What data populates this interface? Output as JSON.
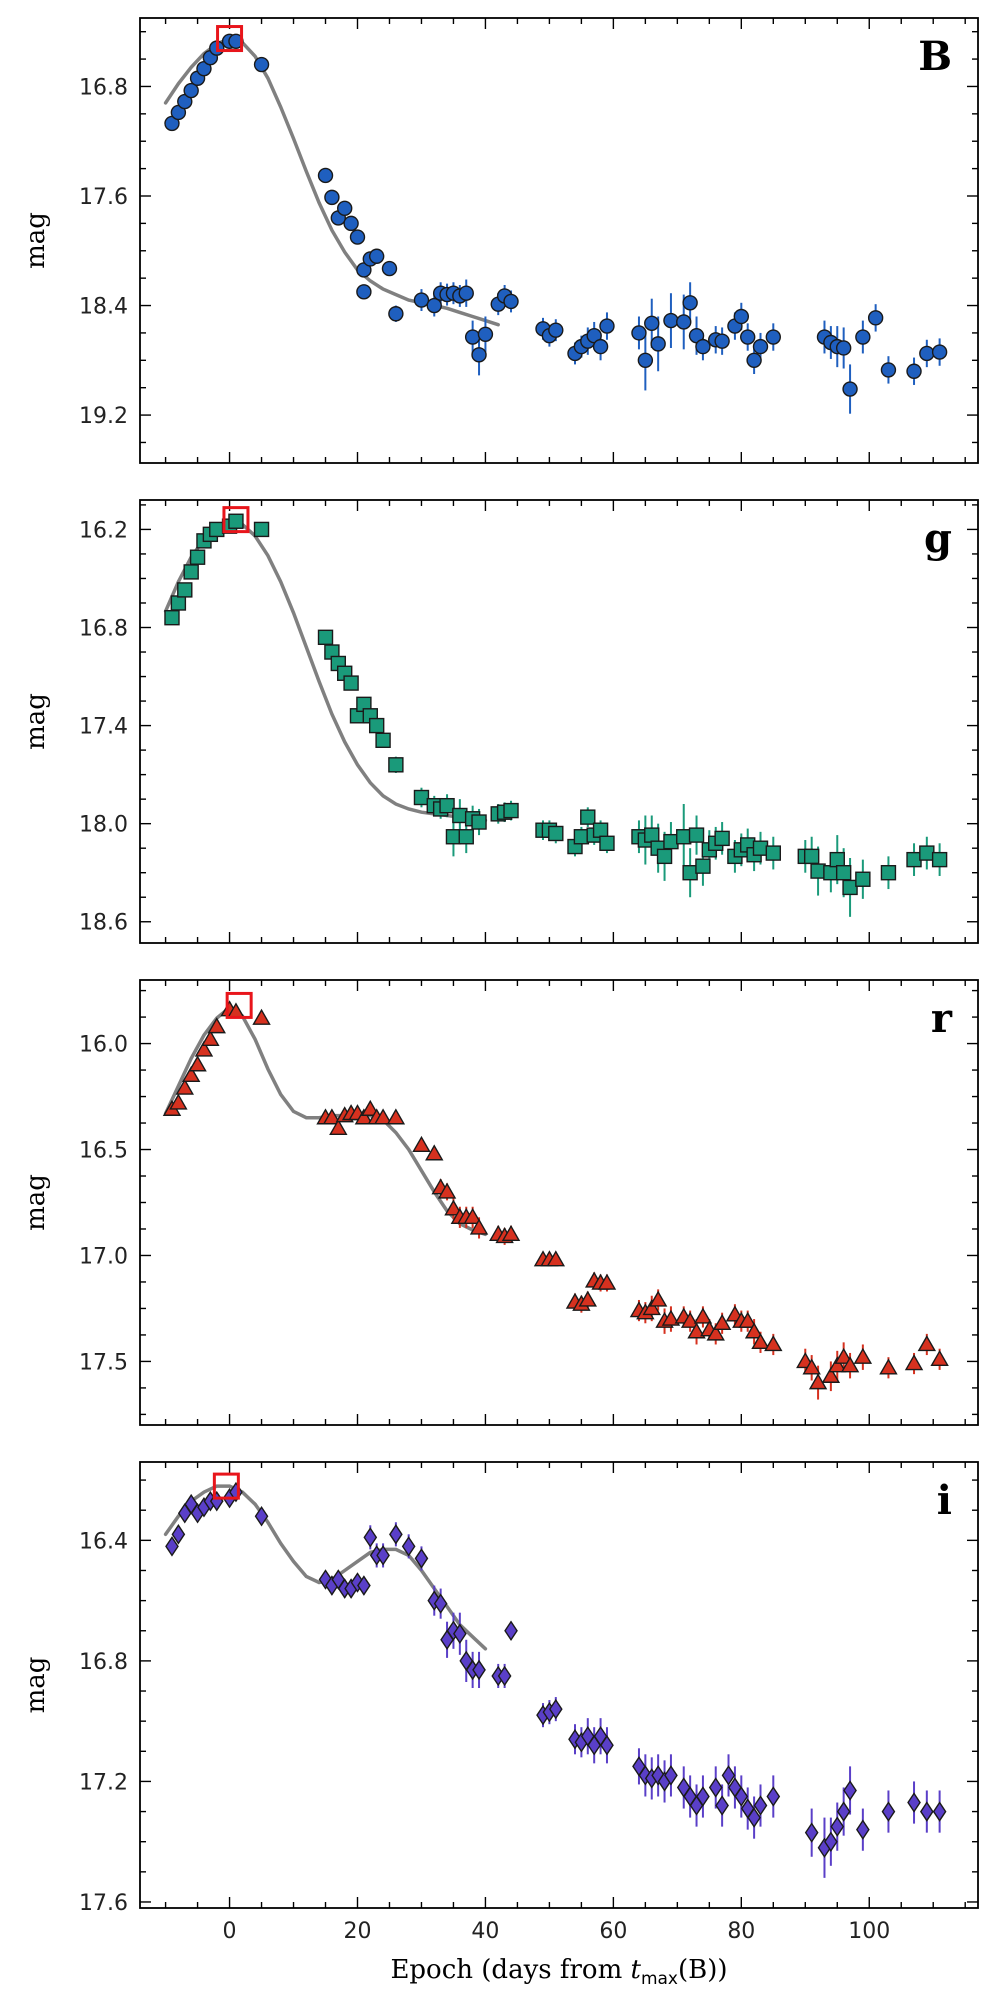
{
  "figure": {
    "xlabel": "Epoch (days from ",
    "xlabel_math": "t",
    "xlabel_sub": "max",
    "xlabel_tail": "(B))",
    "x_ticks": [
      "0",
      "20",
      "40",
      "60",
      "80",
      "100"
    ]
  },
  "chart_data": [
    {
      "type": "scatter",
      "band": "B",
      "ylabel": "mag",
      "xlim": [
        -14,
        117
      ],
      "ylim": [
        19.55,
        16.3
      ],
      "y_ticks": [
        "16.8",
        "17.6",
        "18.4",
        "19.2"
      ],
      "y_tick_values": [
        16.8,
        17.6,
        18.4,
        19.2
      ],
      "marker": "circle",
      "color": "#1f5fbf",
      "model_curve": {
        "x": [
          -10,
          -8,
          -6,
          -4,
          -2,
          0,
          2,
          4,
          6,
          8,
          10,
          12,
          14,
          16,
          18,
          20,
          22,
          24,
          26,
          28,
          30,
          32,
          34,
          36,
          38,
          40,
          42
        ],
        "y": [
          16.92,
          16.78,
          16.66,
          16.56,
          16.49,
          16.45,
          16.48,
          16.58,
          16.74,
          16.95,
          17.18,
          17.42,
          17.65,
          17.85,
          18.01,
          18.14,
          18.22,
          18.28,
          18.32,
          18.36,
          18.38,
          18.4,
          18.42,
          18.45,
          18.48,
          18.51,
          18.54
        ]
      },
      "peak_marker": {
        "x": 0,
        "y": 16.45
      },
      "x": [
        -9,
        -8,
        -7,
        -6,
        -5,
        -4,
        -3,
        -2,
        0,
        1,
        5,
        15,
        16,
        17,
        18,
        19,
        20,
        21,
        21,
        22,
        23,
        25,
        26,
        30,
        32,
        33,
        34,
        35,
        36,
        37,
        38,
        39,
        40,
        42,
        43,
        44,
        49,
        50,
        51,
        54,
        55,
        56,
        57,
        58,
        59,
        64,
        65,
        66,
        67,
        69,
        71,
        72,
        73,
        74,
        76,
        77,
        79,
        80,
        81,
        82,
        83,
        85,
        93,
        94,
        95,
        96,
        97,
        99,
        101,
        103,
        107,
        109,
        111
      ],
      "y": [
        17.07,
        16.99,
        16.91,
        16.83,
        16.74,
        16.67,
        16.59,
        16.52,
        16.47,
        16.47,
        16.64,
        17.45,
        17.61,
        17.76,
        17.69,
        17.8,
        17.9,
        18.14,
        18.3,
        18.06,
        18.04,
        18.13,
        18.46,
        18.36,
        18.4,
        18.31,
        18.32,
        18.31,
        18.33,
        18.31,
        18.63,
        18.76,
        18.61,
        18.39,
        18.33,
        18.37,
        18.57,
        18.62,
        18.58,
        18.75,
        18.7,
        18.66,
        18.62,
        18.7,
        18.55,
        18.6,
        18.8,
        18.53,
        18.68,
        18.51,
        18.52,
        18.38,
        18.62,
        18.7,
        18.65,
        18.66,
        18.55,
        18.48,
        18.63,
        18.8,
        18.7,
        18.63,
        18.63,
        18.67,
        18.7,
        18.71,
        19.01,
        18.63,
        18.49,
        18.87,
        18.88,
        18.75,
        18.74
      ],
      "yerr": [
        0.02,
        0.02,
        0.02,
        0.02,
        0.02,
        0.02,
        0.02,
        0.02,
        0.02,
        0.02,
        0.02,
        0.03,
        0.03,
        0.03,
        0.03,
        0.04,
        0.04,
        0.05,
        0.05,
        0.04,
        0.04,
        0.05,
        0.06,
        0.08,
        0.08,
        0.08,
        0.08,
        0.08,
        0.08,
        0.1,
        0.12,
        0.15,
        0.13,
        0.08,
        0.08,
        0.08,
        0.08,
        0.08,
        0.08,
        0.08,
        0.08,
        0.1,
        0.1,
        0.1,
        0.1,
        0.12,
        0.22,
        0.18,
        0.2,
        0.2,
        0.2,
        0.15,
        0.14,
        0.1,
        0.1,
        0.1,
        0.1,
        0.1,
        0.1,
        0.1,
        0.1,
        0.1,
        0.12,
        0.12,
        0.15,
        0.15,
        0.18,
        0.12,
        0.1,
        0.1,
        0.1,
        0.1,
        0.1
      ]
    },
    {
      "type": "scatter",
      "band": "g",
      "ylabel": "mag",
      "xlim": [
        -14,
        117
      ],
      "ylim": [
        18.73,
        16.02
      ],
      "y_ticks": [
        "16.2",
        "16.8",
        "17.4",
        "18.0",
        "18.6"
      ],
      "y_tick_values": [
        16.2,
        16.8,
        17.4,
        18.0,
        18.6
      ],
      "marker": "square",
      "color": "#1a9a7a",
      "model_curve": {
        "x": [
          -10,
          -8,
          -6,
          -4,
          -2,
          0,
          2,
          4,
          6,
          8,
          10,
          12,
          14,
          16,
          18,
          20,
          22,
          24,
          26,
          28,
          30,
          32,
          34,
          36,
          38,
          40
        ],
        "y": [
          16.7,
          16.52,
          16.37,
          16.26,
          16.19,
          16.15,
          16.17,
          16.24,
          16.36,
          16.52,
          16.71,
          16.92,
          17.13,
          17.33,
          17.5,
          17.64,
          17.75,
          17.83,
          17.88,
          17.91,
          17.93,
          17.94,
          17.95,
          17.96,
          17.97,
          17.98
        ]
      },
      "peak_marker": {
        "x": 1,
        "y": 16.14
      },
      "x": [
        -9,
        -8,
        -7,
        -6,
        -5,
        -4,
        -3,
        -2,
        0,
        1,
        5,
        15,
        16,
        17,
        18,
        19,
        20,
        21,
        22,
        23,
        24,
        26,
        30,
        32,
        33,
        34,
        35,
        36,
        37,
        38,
        39,
        42,
        43,
        44,
        49,
        50,
        51,
        54,
        55,
        56,
        57,
        58,
        59,
        64,
        65,
        66,
        67,
        68,
        69,
        71,
        72,
        73,
        74,
        75,
        76,
        77,
        79,
        80,
        81,
        82,
        83,
        85,
        90,
        91,
        92,
        94,
        95,
        96,
        97,
        99,
        103,
        107,
        109,
        111
      ],
      "y": [
        16.74,
        16.65,
        16.57,
        16.46,
        16.37,
        16.27,
        16.23,
        16.2,
        16.18,
        16.15,
        16.2,
        16.86,
        16.95,
        17.02,
        17.08,
        17.14,
        17.34,
        17.27,
        17.34,
        17.4,
        17.49,
        17.64,
        17.84,
        17.89,
        17.91,
        17.89,
        18.08,
        17.95,
        18.08,
        17.97,
        17.99,
        17.94,
        17.93,
        17.92,
        18.04,
        18.04,
        18.06,
        18.14,
        18.08,
        17.96,
        18.07,
        18.04,
        18.12,
        18.08,
        18.1,
        18.07,
        18.15,
        18.2,
        18.11,
        18.08,
        18.3,
        18.07,
        18.26,
        18.16,
        18.12,
        18.09,
        18.2,
        18.16,
        18.13,
        18.19,
        18.15,
        18.18,
        18.2,
        18.2,
        18.29,
        18.3,
        18.22,
        18.3,
        18.39,
        18.34,
        18.3,
        18.22,
        18.18,
        18.22
      ],
      "yerr": [
        0.02,
        0.02,
        0.02,
        0.02,
        0.02,
        0.02,
        0.02,
        0.02,
        0.02,
        0.02,
        0.02,
        0.03,
        0.03,
        0.03,
        0.03,
        0.03,
        0.04,
        0.04,
        0.04,
        0.04,
        0.04,
        0.05,
        0.06,
        0.06,
        0.06,
        0.07,
        0.12,
        0.1,
        0.1,
        0.08,
        0.08,
        0.06,
        0.06,
        0.06,
        0.06,
        0.06,
        0.06,
        0.06,
        0.06,
        0.06,
        0.06,
        0.06,
        0.06,
        0.1,
        0.15,
        0.12,
        0.15,
        0.15,
        0.12,
        0.2,
        0.15,
        0.12,
        0.12,
        0.12,
        0.1,
        0.1,
        0.1,
        0.1,
        0.1,
        0.1,
        0.1,
        0.1,
        0.1,
        0.12,
        0.15,
        0.12,
        0.15,
        0.15,
        0.18,
        0.12,
        0.1,
        0.1,
        0.1,
        0.1
      ]
    },
    {
      "type": "scatter",
      "band": "r",
      "ylabel": "mag",
      "xlim": [
        -14,
        117
      ],
      "ylim": [
        17.8,
        15.7
      ],
      "y_ticks": [
        "16.0",
        "16.5",
        "17.0",
        "17.5"
      ],
      "y_tick_values": [
        16.0,
        16.5,
        17.0,
        17.5
      ],
      "marker": "triangle",
      "color": "#d6311f",
      "model_curve": {
        "x": [
          -10,
          -8,
          -6,
          -4,
          -2,
          0,
          2,
          4,
          6,
          8,
          10,
          12,
          14,
          16,
          18,
          20,
          22,
          24,
          26,
          28,
          30,
          32,
          34,
          36,
          38,
          40
        ],
        "y": [
          16.33,
          16.2,
          16.07,
          15.96,
          15.88,
          15.83,
          15.87,
          15.98,
          16.12,
          16.24,
          16.32,
          16.35,
          16.35,
          16.34,
          16.34,
          16.34,
          16.34,
          16.36,
          16.42,
          16.5,
          16.6,
          16.7,
          16.79,
          16.85,
          16.88,
          16.9
        ]
      },
      "peak_marker": {
        "x": 1.5,
        "y": 15.82
      },
      "x": [
        -9,
        -8,
        -7,
        -6,
        -5,
        -4,
        -3,
        -2,
        0,
        1,
        5,
        15,
        16,
        17,
        18,
        19,
        20,
        21,
        22,
        23,
        24,
        26,
        30,
        32,
        33,
        34,
        35,
        36,
        37,
        38,
        39,
        42,
        43,
        44,
        49,
        50,
        51,
        54,
        55,
        56,
        57,
        58,
        59,
        64,
        65,
        66,
        67,
        68,
        69,
        71,
        72,
        73,
        74,
        75,
        76,
        77,
        79,
        80,
        81,
        82,
        83,
        85,
        90,
        91,
        92,
        94,
        95,
        96,
        97,
        99,
        103,
        107,
        109,
        111
      ],
      "y": [
        16.31,
        16.28,
        16.21,
        16.15,
        16.1,
        16.03,
        15.98,
        15.92,
        15.84,
        15.85,
        15.88,
        16.35,
        16.35,
        16.4,
        16.34,
        16.33,
        16.33,
        16.35,
        16.31,
        16.35,
        16.35,
        16.35,
        16.48,
        16.52,
        16.68,
        16.7,
        16.78,
        16.82,
        16.82,
        16.82,
        16.87,
        16.9,
        16.91,
        16.9,
        17.02,
        17.02,
        17.02,
        17.22,
        17.23,
        17.21,
        17.12,
        17.13,
        17.13,
        17.26,
        17.27,
        17.25,
        17.21,
        17.31,
        17.3,
        17.29,
        17.31,
        17.36,
        17.29,
        17.35,
        17.37,
        17.32,
        17.28,
        17.31,
        17.31,
        17.36,
        17.41,
        17.42,
        17.5,
        17.53,
        17.6,
        17.57,
        17.52,
        17.48,
        17.52,
        17.48,
        17.53,
        17.51,
        17.42,
        17.49
      ],
      "yerr": [
        0.02,
        0.02,
        0.02,
        0.02,
        0.02,
        0.02,
        0.02,
        0.02,
        0.02,
        0.02,
        0.02,
        0.02,
        0.02,
        0.03,
        0.02,
        0.02,
        0.03,
        0.03,
        0.03,
        0.03,
        0.03,
        0.03,
        0.03,
        0.03,
        0.04,
        0.04,
        0.05,
        0.05,
        0.05,
        0.05,
        0.05,
        0.04,
        0.04,
        0.04,
        0.03,
        0.03,
        0.03,
        0.04,
        0.04,
        0.04,
        0.04,
        0.04,
        0.04,
        0.05,
        0.05,
        0.06,
        0.05,
        0.06,
        0.06,
        0.05,
        0.05,
        0.06,
        0.05,
        0.05,
        0.05,
        0.05,
        0.05,
        0.05,
        0.05,
        0.06,
        0.05,
        0.05,
        0.06,
        0.06,
        0.08,
        0.07,
        0.07,
        0.07,
        0.06,
        0.06,
        0.05,
        0.05,
        0.05,
        0.05
      ]
    },
    {
      "type": "scatter",
      "band": "i",
      "ylabel": "mag",
      "xlim": [
        -14,
        117
      ],
      "ylim": [
        17.62,
        16.14
      ],
      "y_ticks": [
        "16.4",
        "16.8",
        "17.2",
        "17.6"
      ],
      "y_tick_values": [
        16.4,
        16.8,
        17.2,
        17.6
      ],
      "marker": "diamond",
      "color": "#5a3fc8",
      "model_curve": {
        "x": [
          -10,
          -8,
          -6,
          -4,
          -2,
          0,
          2,
          4,
          6,
          8,
          10,
          12,
          14,
          16,
          18,
          20,
          22,
          24,
          26,
          28,
          30,
          32,
          34,
          36,
          38,
          40
        ],
        "y": [
          16.38,
          16.32,
          16.27,
          16.24,
          16.22,
          16.22,
          16.24,
          16.28,
          16.34,
          16.41,
          16.47,
          16.52,
          16.54,
          16.53,
          16.5,
          16.47,
          16.44,
          16.43,
          16.43,
          16.45,
          16.5,
          16.56,
          16.62,
          16.68,
          16.72,
          16.76
        ]
      },
      "peak_marker": {
        "x": -0.5,
        "y": 16.22
      },
      "x": [
        -9,
        -8,
        -7,
        -6,
        -5,
        -4,
        -3,
        -2,
        0,
        1,
        5,
        15,
        16,
        17,
        18,
        19,
        20,
        21,
        22,
        23,
        24,
        26,
        28,
        30,
        32,
        33,
        34,
        35,
        36,
        37,
        38,
        39,
        42,
        43,
        44,
        49,
        50,
        51,
        54,
        55,
        56,
        57,
        58,
        59,
        64,
        65,
        66,
        67,
        68,
        69,
        71,
        72,
        73,
        74,
        76,
        77,
        78,
        79,
        80,
        81,
        82,
        83,
        85,
        91,
        93,
        94,
        95,
        96,
        97,
        99,
        103,
        107,
        109,
        111
      ],
      "y": [
        16.42,
        16.38,
        16.31,
        16.28,
        16.31,
        16.29,
        16.27,
        16.27,
        16.26,
        16.24,
        16.32,
        16.53,
        16.55,
        16.53,
        16.56,
        16.56,
        16.54,
        16.55,
        16.39,
        16.45,
        16.45,
        16.38,
        16.42,
        16.46,
        16.6,
        16.61,
        16.73,
        16.7,
        16.71,
        16.8,
        16.83,
        16.83,
        16.85,
        16.85,
        16.7,
        16.98,
        16.97,
        16.96,
        17.06,
        17.07,
        17.05,
        17.08,
        17.05,
        17.08,
        17.15,
        17.18,
        17.19,
        17.18,
        17.2,
        17.18,
        17.22,
        17.25,
        17.28,
        17.25,
        17.22,
        17.28,
        17.18,
        17.22,
        17.25,
        17.29,
        17.32,
        17.28,
        17.25,
        17.37,
        17.42,
        17.4,
        17.35,
        17.3,
        17.23,
        17.36,
        17.3,
        17.27,
        17.3,
        17.3
      ],
      "yerr": [
        0.02,
        0.02,
        0.02,
        0.02,
        0.02,
        0.02,
        0.02,
        0.02,
        0.02,
        0.02,
        0.02,
        0.03,
        0.03,
        0.03,
        0.03,
        0.03,
        0.03,
        0.03,
        0.04,
        0.04,
        0.04,
        0.04,
        0.04,
        0.04,
        0.05,
        0.05,
        0.06,
        0.06,
        0.07,
        0.07,
        0.06,
        0.06,
        0.04,
        0.04,
        0.03,
        0.04,
        0.04,
        0.04,
        0.05,
        0.05,
        0.06,
        0.06,
        0.06,
        0.06,
        0.06,
        0.07,
        0.07,
        0.07,
        0.07,
        0.07,
        0.07,
        0.07,
        0.07,
        0.07,
        0.07,
        0.07,
        0.07,
        0.07,
        0.07,
        0.07,
        0.07,
        0.07,
        0.07,
        0.08,
        0.1,
        0.08,
        0.08,
        0.08,
        0.08,
        0.07,
        0.07,
        0.07,
        0.07,
        0.07
      ]
    }
  ]
}
